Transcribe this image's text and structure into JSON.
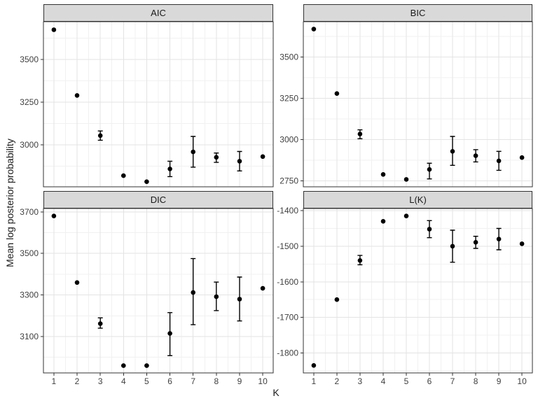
{
  "axes": {
    "x_title": "K",
    "y_title": "Mean log posterior probability"
  },
  "style": {
    "background": "#ffffff",
    "panel_bg": "#ffffff",
    "panel_border": "#333333",
    "strip_bg": "#d9d9d9",
    "strip_border": "#333333",
    "grid_major": "#e3e3e3",
    "grid_minor": "#f1f1f1",
    "tick": "#333333",
    "axis_text": "#404040",
    "point": "#000000",
    "error_bar": "#000000"
  },
  "chart_data": [
    {
      "type": "scatter",
      "title": "AIC",
      "xlabel": "K",
      "ylabel": "Mean log posterior probability",
      "x": [
        1,
        2,
        3,
        4,
        5,
        6,
        7,
        8,
        9,
        10
      ],
      "y": [
        3675,
        3290,
        3055,
        2820,
        2785,
        2860,
        2960,
        2928,
        2905,
        2932
      ],
      "ymin": [
        3675,
        3290,
        3028,
        2820,
        2785,
        2815,
        2870,
        2898,
        2848,
        2932
      ],
      "ymax": [
        3675,
        3290,
        3082,
        2820,
        2785,
        2905,
        3050,
        2953,
        2962,
        2932
      ],
      "yticks": [
        3000,
        3250,
        3500
      ],
      "ylim": [
        2755,
        3722
      ],
      "xticks": [
        1,
        2,
        3,
        4,
        5,
        6,
        7,
        8,
        9,
        10
      ],
      "xlim": [
        0.55,
        10.45
      ],
      "grid": true,
      "legend": false
    },
    {
      "type": "scatter",
      "title": "BIC",
      "xlabel": "K",
      "ylabel": "Mean log posterior probability",
      "x": [
        1,
        2,
        3,
        4,
        5,
        6,
        7,
        8,
        9,
        10
      ],
      "y": [
        3670,
        3280,
        3035,
        2790,
        2760,
        2820,
        2930,
        2903,
        2872,
        2892
      ],
      "ymin": [
        3670,
        3280,
        3006,
        2790,
        2760,
        2763,
        2845,
        2866,
        2815,
        2892
      ],
      "ymax": [
        3670,
        3280,
        3060,
        2790,
        2760,
        2858,
        3020,
        2940,
        2930,
        2892
      ],
      "yticks": [
        2750,
        3000,
        3250,
        3500
      ],
      "ylim": [
        2715,
        3715
      ],
      "xticks": [
        1,
        2,
        3,
        4,
        5,
        6,
        7,
        8,
        9,
        10
      ],
      "xlim": [
        0.55,
        10.45
      ],
      "grid": true,
      "legend": false
    },
    {
      "type": "scatter",
      "title": "DIC",
      "xlabel": "K",
      "ylabel": "Mean log posterior probability",
      "x": [
        1,
        2,
        3,
        4,
        5,
        6,
        7,
        8,
        9,
        10
      ],
      "y": [
        3680,
        3360,
        3162,
        2960,
        2960,
        3115,
        3312,
        3292,
        3280,
        3332
      ],
      "ymin": [
        3680,
        3360,
        3140,
        2960,
        2960,
        3008,
        3157,
        3225,
        3175,
        3332
      ],
      "ymax": [
        3680,
        3360,
        3190,
        2960,
        2960,
        3215,
        3475,
        3362,
        3386,
        3332
      ],
      "yticks": [
        3100,
        3300,
        3500,
        3700
      ],
      "ylim": [
        2925,
        3716
      ],
      "xticks": [
        1,
        2,
        3,
        4,
        5,
        6,
        7,
        8,
        9,
        10
      ],
      "xlim": [
        0.55,
        10.45
      ],
      "grid": true,
      "legend": false
    },
    {
      "type": "scatter",
      "title": "L(K)",
      "xlabel": "K",
      "ylabel": "Mean log posterior probability",
      "x": [
        1,
        2,
        3,
        4,
        5,
        6,
        7,
        8,
        9,
        10
      ],
      "y": [
        -1835,
        -1650,
        -1540,
        -1430,
        -1415,
        -1452,
        -1500,
        -1489,
        -1480,
        -1493
      ],
      "ymin": [
        -1835,
        -1650,
        -1552,
        -1430,
        -1415,
        -1476,
        -1545,
        -1506,
        -1510,
        -1493
      ],
      "ymax": [
        -1835,
        -1650,
        -1526,
        -1430,
        -1415,
        -1428,
        -1455,
        -1472,
        -1450,
        -1493
      ],
      "yticks": [
        -1800,
        -1700,
        -1600,
        -1500,
        -1400
      ],
      "ylim": [
        -1856,
        -1394
      ],
      "xticks": [
        1,
        2,
        3,
        4,
        5,
        6,
        7,
        8,
        9,
        10
      ],
      "xlim": [
        0.55,
        10.45
      ],
      "grid": true,
      "legend": false
    }
  ]
}
